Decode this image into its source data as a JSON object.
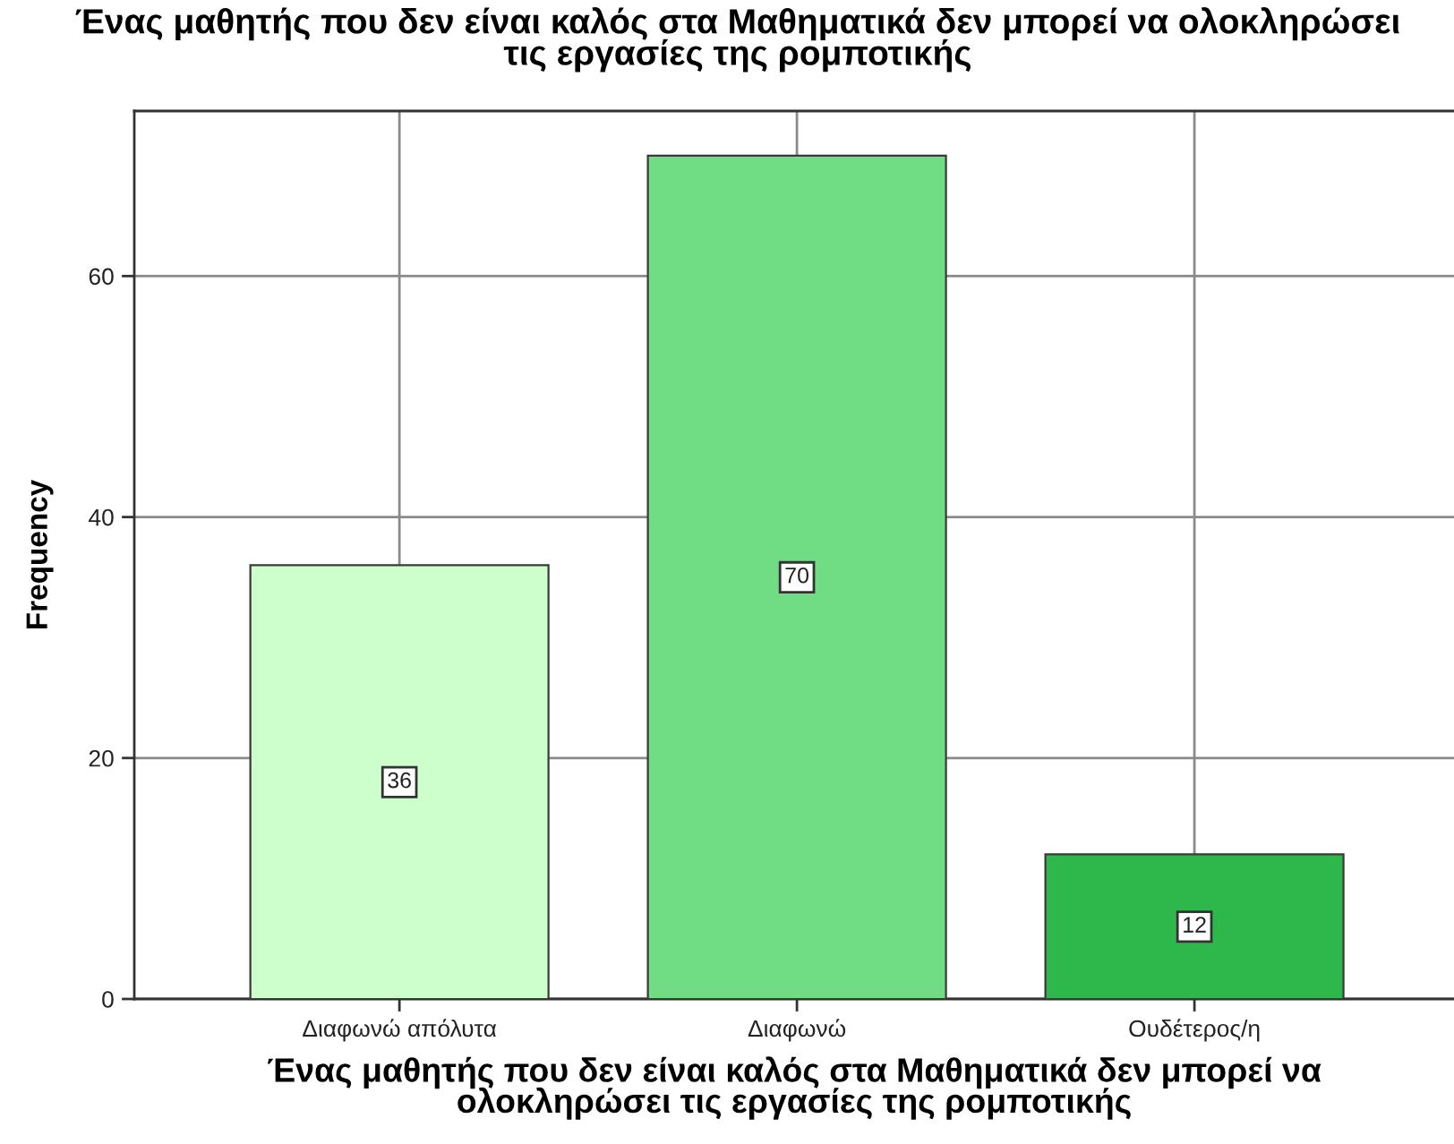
{
  "chart_data": {
    "type": "bar",
    "title": "Ένας μαθητής που δεν είναι καλός στα Μαθηματικά δεν μπορεί να ολοκληρώσει\nτις εργασίες της ρομποτικής",
    "xlabel": "Ένας μαθητής που δεν είναι καλός στα Μαθηματικά δεν μπορεί να\nολοκληρώσει τις εργασίες της ρομποτικής",
    "ylabel": "Frequency",
    "categories": [
      "Διαφωνώ απόλυτα",
      "Διαφωνώ",
      "Ουδέτερος/η"
    ],
    "values": [
      36,
      70,
      12
    ],
    "colors": [
      "#ccffcc",
      "#70dc84",
      "#2eb84b"
    ],
    "ylim": [
      0,
      73.7
    ],
    "yticks": [
      0,
      20,
      40,
      60
    ],
    "grid": true,
    "data_labels": true
  }
}
